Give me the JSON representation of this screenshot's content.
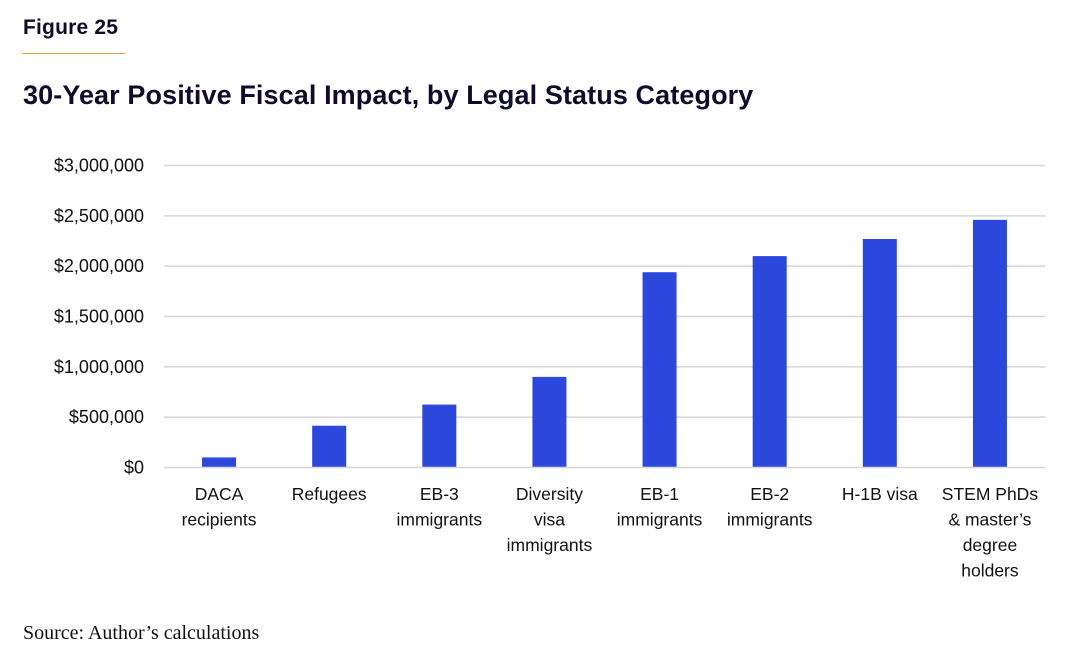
{
  "figure_label": "Figure 25",
  "source": "Source: Author’s calculations",
  "colors": {
    "bar": "#2b47dc",
    "grid": "#d6d6d6",
    "accent_rule": "#e8a23c",
    "title": "#0d0d2b"
  },
  "chart_data": {
    "type": "bar",
    "title": "30-Year Positive Fiscal Impact, by Legal Status Category",
    "xlabel": "",
    "ylabel": "",
    "ylim": [
      0,
      3000000
    ],
    "grid": true,
    "legend": "none",
    "y_ticks": [
      {
        "value": 0,
        "label": "$0"
      },
      {
        "value": 500000,
        "label": "$500,000"
      },
      {
        "value": 1000000,
        "label": "$1,000,000"
      },
      {
        "value": 1500000,
        "label": "$1,500,000"
      },
      {
        "value": 2000000,
        "label": "$2,000,000"
      },
      {
        "value": 2500000,
        "label": "$2,500,000"
      },
      {
        "value": 3000000,
        "label": "$3,000,000"
      }
    ],
    "categories": [
      [
        "DACA",
        "recipients"
      ],
      [
        "Refugees"
      ],
      [
        "EB-3",
        "immigrants"
      ],
      [
        "Diversity",
        "visa",
        "immigrants"
      ],
      [
        "EB-1",
        "immigrants"
      ],
      [
        "EB-2",
        "immigrants"
      ],
      [
        "H-1B visa"
      ],
      [
        "STEM PhDs",
        "& master’s",
        "degree",
        "holders"
      ]
    ],
    "values": [
      100000,
      415000,
      625000,
      900000,
      1940000,
      2100000,
      2270000,
      2460000
    ]
  }
}
